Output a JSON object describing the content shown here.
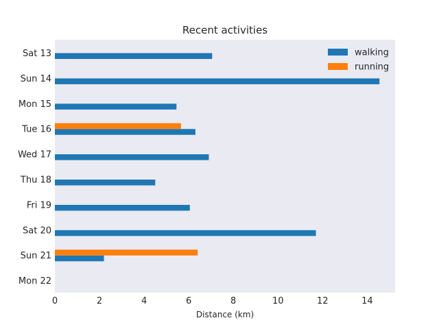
{
  "chart_data": {
    "type": "bar",
    "orientation": "horizontal",
    "title": "Recent activities",
    "xlabel": "Distance (km)",
    "ylabel": "",
    "categories": [
      "Sat 13",
      "Sun 14",
      "Mon 15",
      "Tue 16",
      "Wed 17",
      "Thu 18",
      "Fri 19",
      "Sat 20",
      "Sun 21",
      "Mon 22"
    ],
    "series": [
      {
        "name": "walking",
        "color": "#1f77b4",
        "values": [
          7.05,
          14.55,
          5.45,
          6.3,
          6.9,
          4.5,
          6.05,
          11.7,
          2.2,
          0
        ]
      },
      {
        "name": "running",
        "color": "#ff7f0e",
        "values": [
          0,
          0,
          0,
          5.65,
          0,
          0,
          0,
          0,
          6.4,
          0
        ]
      }
    ],
    "xlim": [
      0,
      15.25
    ],
    "xticks": [
      0,
      2,
      4,
      6,
      8,
      10,
      12,
      14
    ],
    "grid": false,
    "legend_position": "top-right",
    "background_color": "#eaeaf2"
  }
}
